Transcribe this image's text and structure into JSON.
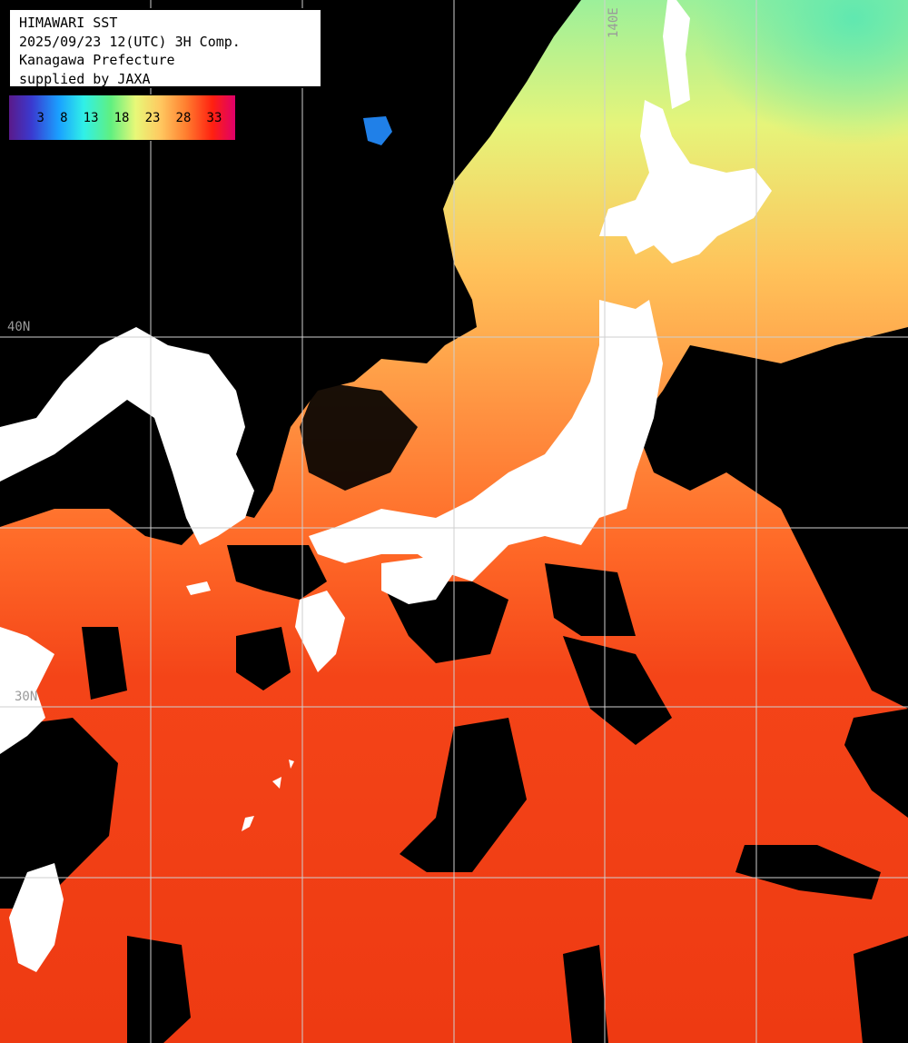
{
  "title_box": {
    "line1": "HIMAWARI SST",
    "line2": "2025/09/23 12(UTC) 3H Comp.",
    "line3": "Kanagawa Prefecture",
    "line4": "supplied by JAXA"
  },
  "colorbar": {
    "ticks": [
      "3",
      "8",
      "13",
      "18",
      "23",
      "28",
      "33"
    ],
    "gradient_colors": [
      "#5a1a8a",
      "#3a3ad0",
      "#1aa0ff",
      "#30f0e8",
      "#60f080",
      "#e8f878",
      "#ffc860",
      "#ff8030",
      "#ff2010",
      "#e0006a"
    ]
  },
  "grid_labels": {
    "lon_140e": "140E",
    "lat_40n": "40N",
    "lat_30n": "30N"
  },
  "colors": {
    "sea_warm": "#f03a10",
    "sea_mid": "#ff8c3c",
    "sea_cool": "#e8f478",
    "sea_cold": "#70f0a8",
    "land": "#ffffff",
    "cloud": "#000000",
    "grid": "#d0d0d0"
  }
}
